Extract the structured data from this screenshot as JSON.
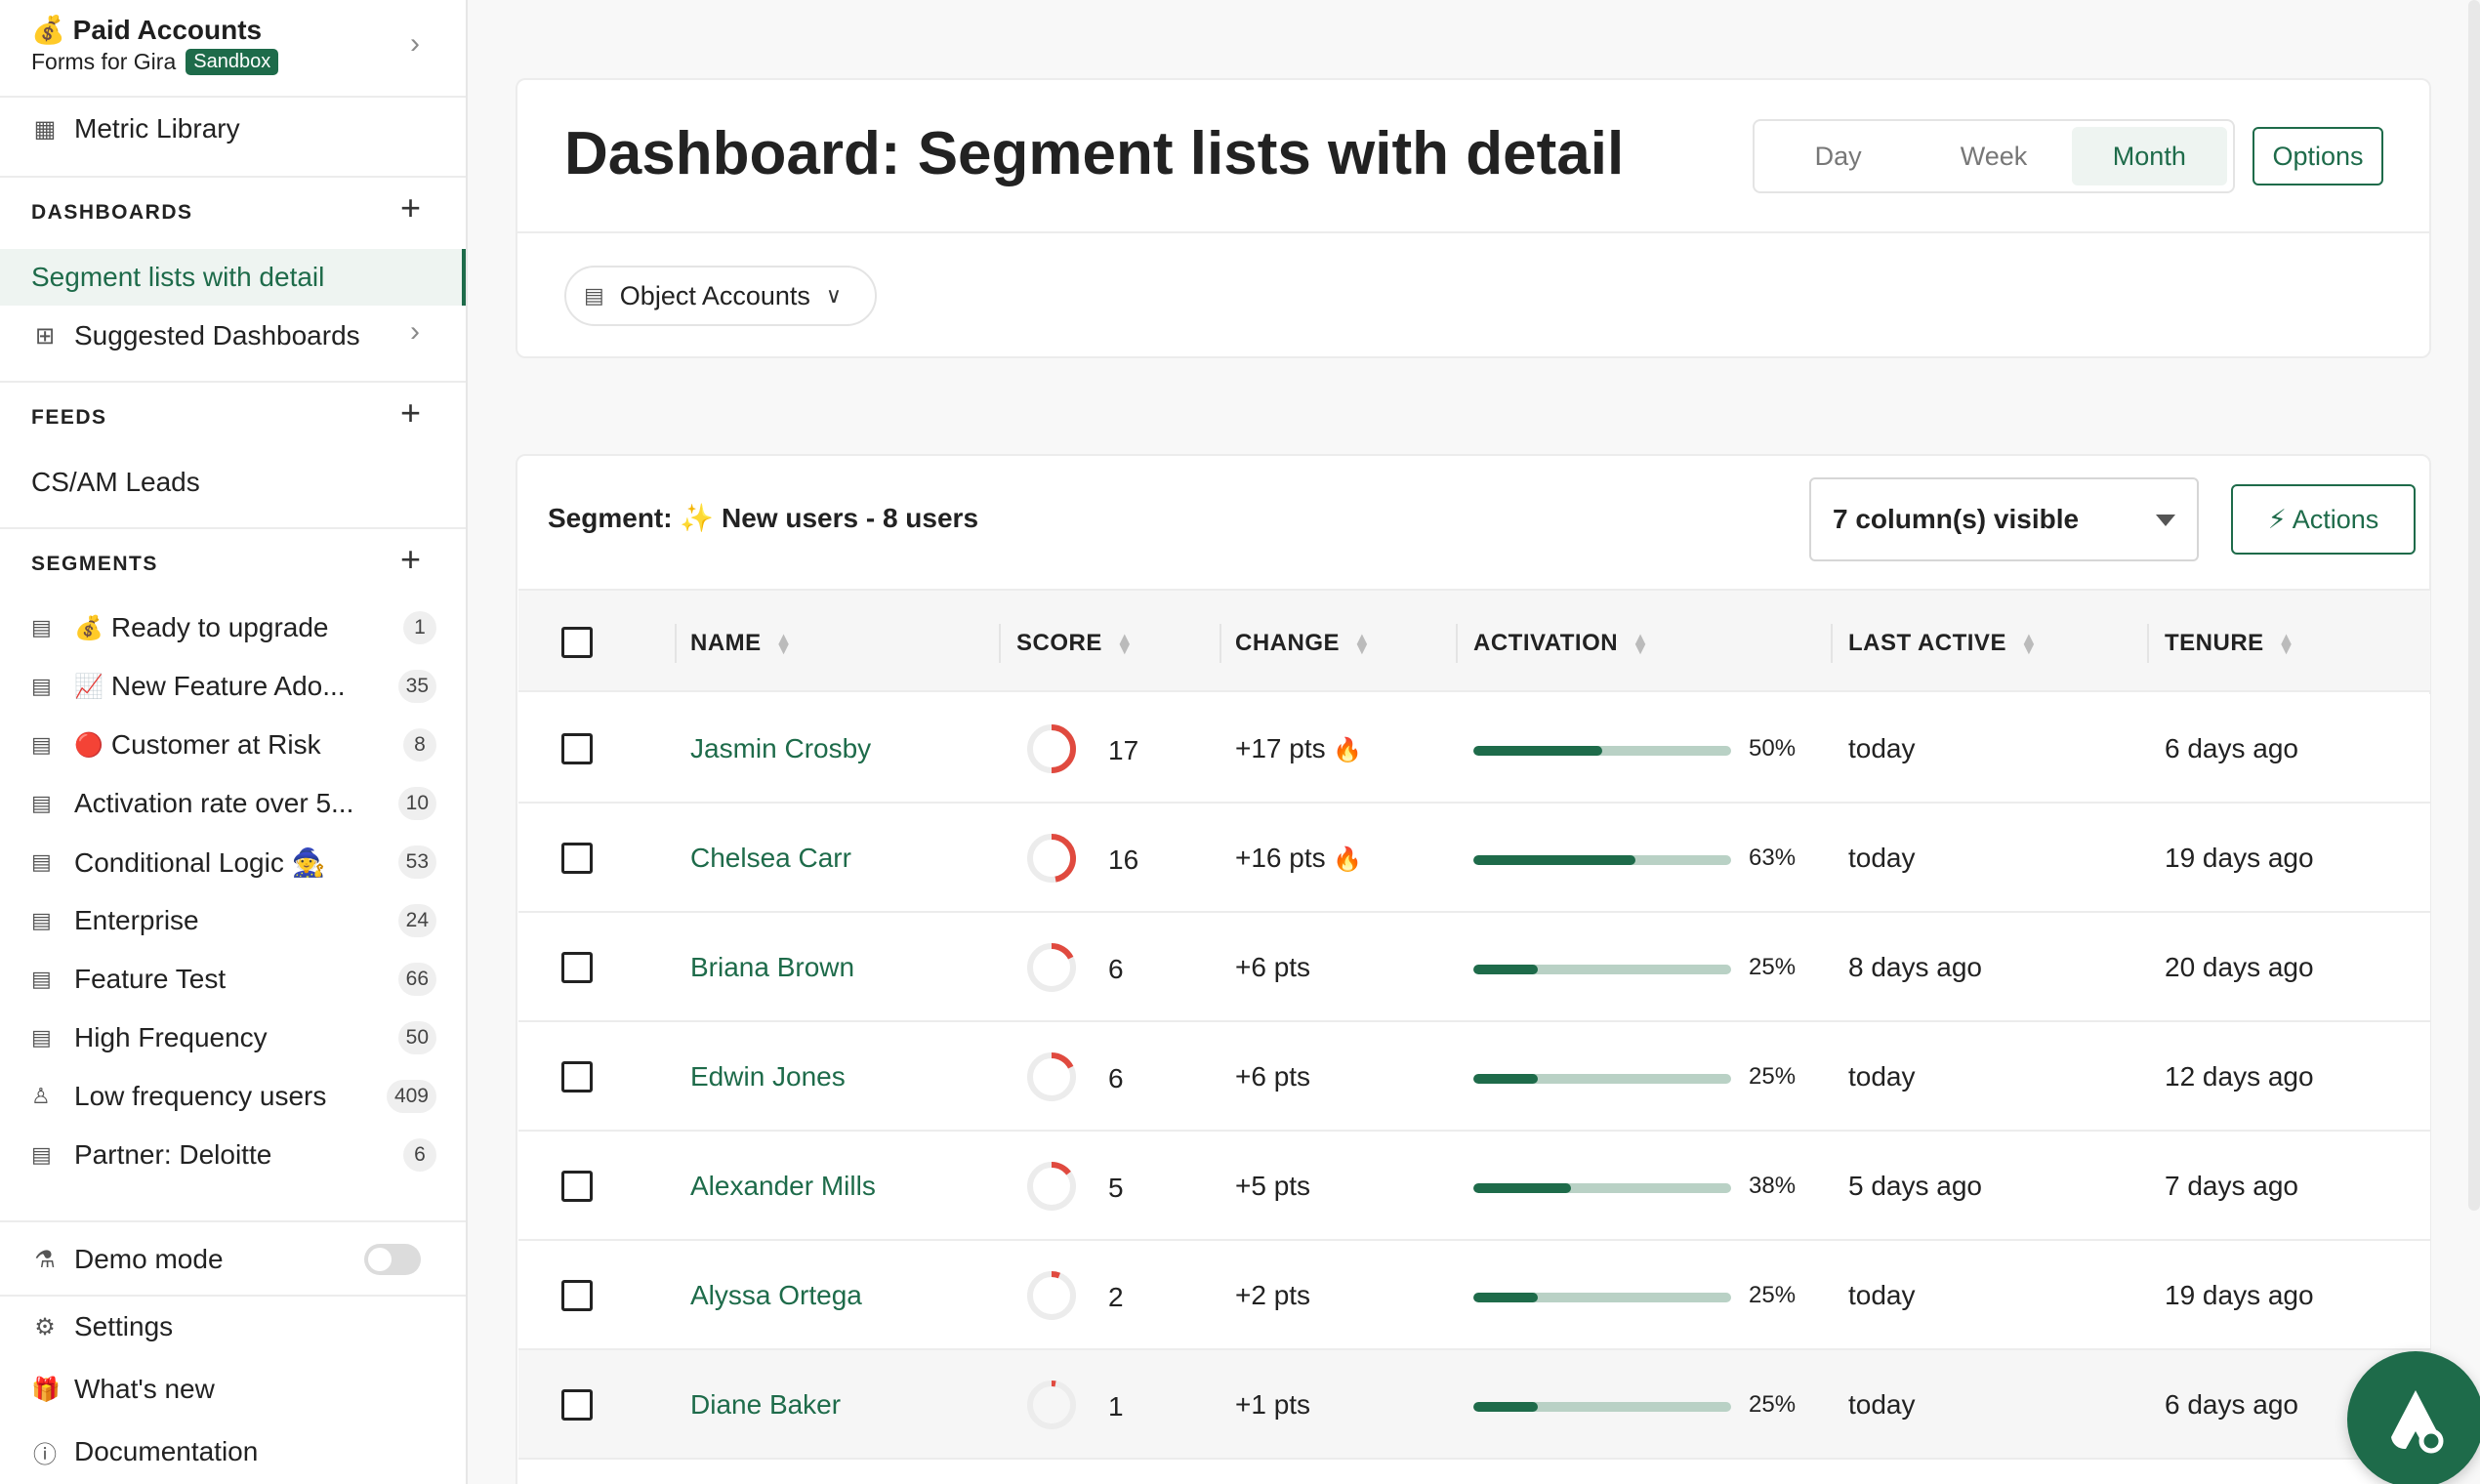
{
  "account": {
    "title": "Paid Accounts",
    "icon": "money-bag-emoji",
    "subtitle": "Forms for Gira",
    "badge": "Sandbox"
  },
  "nav": {
    "metric_library": "Metric Library",
    "dashboards_header": "DASHBOARDS",
    "dashboards": [
      {
        "label": "Segment lists with detail",
        "active": true
      },
      {
        "label": "Suggested Dashboards",
        "active": false
      }
    ],
    "feeds_header": "FEEDS",
    "feeds": [
      {
        "label": "CS/AM Leads"
      }
    ],
    "segments_header": "SEGMENTS",
    "segments": [
      {
        "label": "Ready to upgrade",
        "emoji": "💰",
        "count": "1",
        "icon": "building-icon"
      },
      {
        "label": "New Feature Ado...",
        "emoji": "📈",
        "count": "35",
        "icon": "building-icon"
      },
      {
        "label": "Customer at Risk",
        "emoji": "🔴",
        "count": "8",
        "icon": "building-icon"
      },
      {
        "label": "Activation rate over 5...",
        "emoji": "",
        "count": "10",
        "icon": "building-icon"
      },
      {
        "label": "Conditional Logic 🧙",
        "emoji": "",
        "count": "53",
        "icon": "building-icon"
      },
      {
        "label": "Enterprise",
        "emoji": "",
        "count": "24",
        "icon": "building-icon"
      },
      {
        "label": "Feature Test",
        "emoji": "",
        "count": "66",
        "icon": "building-icon"
      },
      {
        "label": "High Frequency",
        "emoji": "",
        "count": "50",
        "icon": "building-icon"
      },
      {
        "label": "Low frequency users",
        "emoji": "",
        "count": "409",
        "icon": "user-icon"
      },
      {
        "label": "Partner: Deloitte",
        "emoji": "",
        "count": "6",
        "icon": "building-icon"
      }
    ],
    "demo_mode": "Demo mode",
    "settings": "Settings",
    "whats_new": "What's new",
    "documentation": "Documentation"
  },
  "header": {
    "title": "Dashboard: Segment lists with detail",
    "periods": [
      "Day",
      "Week",
      "Month"
    ],
    "selected_period": "Month",
    "options_label": "Options",
    "object_filter": "Object Accounts"
  },
  "segment": {
    "prefix": "Segment:",
    "name": "✨ New users - 8 users",
    "columns_visible": "7 column(s) visible",
    "actions_label": "⚡ Actions"
  },
  "table": {
    "columns": [
      "NAME",
      "SCORE",
      "CHANGE",
      "ACTIVATION",
      "LAST ACTIVE",
      "TENURE"
    ],
    "rows": [
      {
        "name": "Jasmin Crosby",
        "score": "17",
        "change": "+17 pts",
        "fire": true,
        "activation": 50,
        "activation_label": "50%",
        "last_active": "today",
        "tenure": "6 days ago"
      },
      {
        "name": "Chelsea Carr",
        "score": "16",
        "change": "+16 pts",
        "fire": true,
        "activation": 63,
        "activation_label": "63%",
        "last_active": "today",
        "tenure": "19 days ago"
      },
      {
        "name": "Briana Brown",
        "score": "6",
        "change": "+6 pts",
        "fire": false,
        "activation": 25,
        "activation_label": "25%",
        "last_active": "8 days ago",
        "tenure": "20 days ago"
      },
      {
        "name": "Edwin Jones",
        "score": "6",
        "change": "+6 pts",
        "fire": false,
        "activation": 25,
        "activation_label": "25%",
        "last_active": "today",
        "tenure": "12 days ago"
      },
      {
        "name": "Alexander Mills",
        "score": "5",
        "change": "+5 pts",
        "fire": false,
        "activation": 38,
        "activation_label": "38%",
        "last_active": "5 days ago",
        "tenure": "7 days ago"
      },
      {
        "name": "Alyssa Ortega",
        "score": "2",
        "change": "+2 pts",
        "fire": false,
        "activation": 25,
        "activation_label": "25%",
        "last_active": "today",
        "tenure": "19 days ago"
      },
      {
        "name": "Diane Baker",
        "score": "1",
        "change": "+1 pts",
        "fire": false,
        "activation": 25,
        "activation_label": "25%",
        "last_active": "today",
        "tenure": "6 days ago"
      }
    ]
  },
  "colors": {
    "brand": "#1e6b4a",
    "score_arc": "#e04a3f"
  }
}
